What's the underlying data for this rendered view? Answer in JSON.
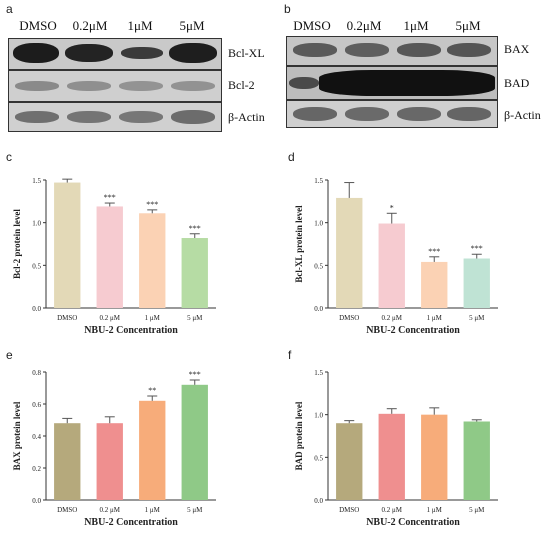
{
  "panels": {
    "a": {
      "letter": "a",
      "lanes": [
        "DMSO",
        "0.2μM",
        "1μM",
        "5μM"
      ],
      "rows": [
        "Bcl-XL",
        "Bcl-2",
        "β-Actin"
      ]
    },
    "b": {
      "letter": "b",
      "lanes": [
        "DMSO",
        "0.2μM",
        "1μM",
        "5μM"
      ],
      "rows": [
        "BAX",
        "BAD",
        "β-Actin"
      ]
    }
  },
  "chart_data": [
    {
      "panel": "c",
      "type": "bar",
      "ylabel": "Bcl-2 protein level",
      "xlabel": "NBU-2 Concentration",
      "categories": [
        "DMSO",
        "0.2 μM",
        "1 μM",
        "5 μM"
      ],
      "values": [
        1.47,
        1.19,
        1.11,
        0.82
      ],
      "errors": [
        0.04,
        0.04,
        0.04,
        0.05
      ],
      "significance": [
        "",
        "***",
        "***",
        "***"
      ],
      "colors": [
        "#e3d9b7",
        "#f6cbd0",
        "#fbd2b4",
        "#b6dca4"
      ],
      "ylim": [
        0,
        1.5
      ],
      "yticks": [
        "0.0",
        "0.5",
        "1.0",
        "1.5"
      ]
    },
    {
      "panel": "d",
      "type": "bar",
      "ylabel": "Bcl-XL protein level",
      "xlabel": "NBU-2 Concentration",
      "categories": [
        "DMSO",
        "0.2 μM",
        "1 μM",
        "5 μM"
      ],
      "values": [
        1.29,
        0.99,
        0.54,
        0.58
      ],
      "errors": [
        0.18,
        0.12,
        0.06,
        0.05
      ],
      "significance": [
        "",
        "*",
        "***",
        "***"
      ],
      "colors": [
        "#e3d9b7",
        "#f6cbd0",
        "#fbd2b4",
        "#bfe3d4"
      ],
      "ylim": [
        0,
        1.5
      ],
      "yticks": [
        "0.0",
        "0.5",
        "1.0",
        "1.5"
      ]
    },
    {
      "panel": "e",
      "type": "bar",
      "ylabel": "BAX protein level",
      "xlabel": "NBU-2 Concentration",
      "categories": [
        "DMSO",
        "0.2 μM",
        "1 μM",
        "5 μM"
      ],
      "values": [
        0.48,
        0.48,
        0.62,
        0.72
      ],
      "errors": [
        0.03,
        0.04,
        0.03,
        0.03
      ],
      "significance": [
        "",
        "",
        "**",
        "***"
      ],
      "colors": [
        "#b5a97c",
        "#ef8f8f",
        "#f7ac7a",
        "#8fc987"
      ],
      "ylim": [
        0,
        0.8
      ],
      "yticks": [
        "0.0",
        "0.2",
        "0.4",
        "0.6",
        "0.8"
      ]
    },
    {
      "panel": "f",
      "type": "bar",
      "ylabel": "BAD protein level",
      "xlabel": "NBU-2 Concentration",
      "categories": [
        "DMSO",
        "0.2 μM",
        "1 μM",
        "5 μM"
      ],
      "values": [
        0.9,
        1.01,
        1.0,
        0.92
      ],
      "errors": [
        0.03,
        0.06,
        0.08,
        0.02
      ],
      "significance": [
        "",
        "",
        "",
        ""
      ],
      "colors": [
        "#b5a97c",
        "#ef8f8f",
        "#f7ac7a",
        "#8fc987"
      ],
      "ylim": [
        0,
        1.5
      ],
      "yticks": [
        "0.0",
        "0.5",
        "1.0",
        "1.5"
      ]
    }
  ]
}
